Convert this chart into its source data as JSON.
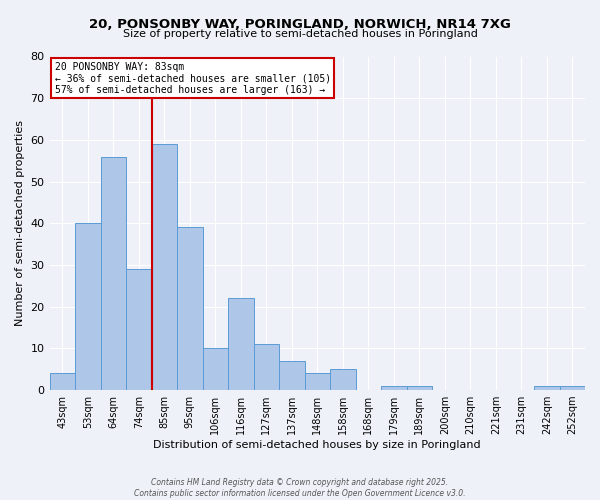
{
  "title": "20, PONSONBY WAY, PORINGLAND, NORWICH, NR14 7XG",
  "subtitle": "Size of property relative to semi-detached houses in Poringland",
  "xlabel": "Distribution of semi-detached houses by size in Poringland",
  "ylabel": "Number of semi-detached properties",
  "categories": [
    "43sqm",
    "53sqm",
    "64sqm",
    "74sqm",
    "85sqm",
    "95sqm",
    "106sqm",
    "116sqm",
    "127sqm",
    "137sqm",
    "148sqm",
    "158sqm",
    "168sqm",
    "179sqm",
    "189sqm",
    "200sqm",
    "210sqm",
    "221sqm",
    "231sqm",
    "242sqm",
    "252sqm"
  ],
  "values": [
    4,
    40,
    56,
    29,
    59,
    39,
    10,
    22,
    11,
    7,
    4,
    5,
    0,
    1,
    1,
    0,
    0,
    0,
    0,
    1,
    1
  ],
  "bar_color": "#aec6e8",
  "bar_edge_color": "#5b9bd5",
  "ylim": [
    0,
    80
  ],
  "yticks": [
    0,
    10,
    20,
    30,
    40,
    50,
    60,
    70,
    80
  ],
  "property_bar_index": 4,
  "red_line_color": "#cc0000",
  "annotation_title": "20 PONSONBY WAY: 83sqm",
  "annotation_line1": "← 36% of semi-detached houses are smaller (105)",
  "annotation_line2": "57% of semi-detached houses are larger (163) →",
  "footer_line1": "Contains HM Land Registry data © Crown copyright and database right 2025.",
  "footer_line2": "Contains public sector information licensed under the Open Government Licence v3.0.",
  "background_color": "#eef2f8",
  "plot_bg_color": "#eef2f8"
}
